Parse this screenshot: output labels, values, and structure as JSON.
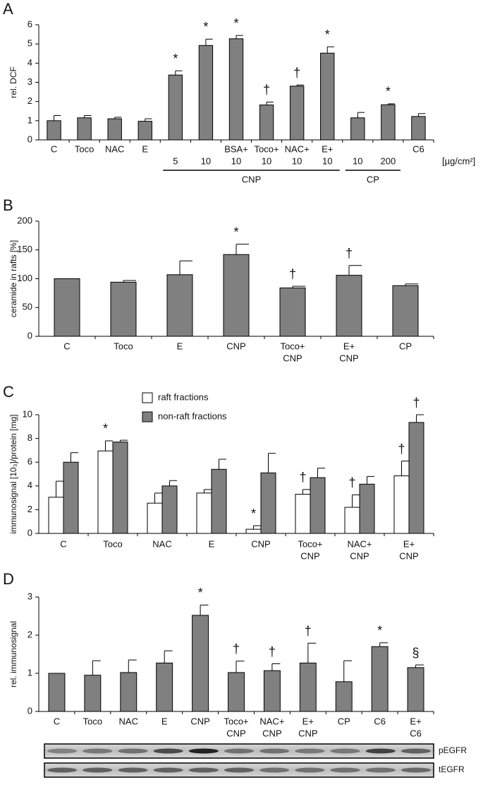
{
  "chart_data": [
    {
      "type": "bar",
      "panel": "A",
      "ylabel": "rel. DCF",
      "unit": "[µg/cm²]",
      "color": "#808080",
      "categories": [
        "C",
        "Toco",
        "NAC",
        "E",
        "5",
        "10",
        [
          "BSA+",
          "10"
        ],
        [
          "Toco+",
          "10"
        ],
        [
          "NAC+",
          "10"
        ],
        [
          "E+",
          "10"
        ],
        "10",
        "200",
        "C6"
      ],
      "values": [
        1.0,
        1.15,
        1.1,
        0.97,
        3.38,
        4.92,
        5.27,
        1.82,
        2.8,
        4.52,
        1.15,
        1.83,
        1.22
      ],
      "errors": [
        0.27,
        0.12,
        0.08,
        0.13,
        0.22,
        0.33,
        0.17,
        0.15,
        0.06,
        0.33,
        0.28,
        0.05,
        0.15
      ],
      "markers": [
        null,
        null,
        null,
        null,
        "*",
        "*",
        "*",
        "†",
        "†",
        "*",
        null,
        "*",
        null
      ],
      "groups": [
        {
          "label": "CNP",
          "first": 4,
          "last": 9
        },
        {
          "label": "CP",
          "first": 10,
          "last": 11
        }
      ],
      "ylim": [
        0,
        6
      ],
      "yticks": [
        0,
        1,
        2,
        3,
        4,
        5,
        6
      ]
    },
    {
      "type": "bar",
      "panel": "B",
      "ylabel": "ceramide in rafts [%]",
      "color": "#808080",
      "categories": [
        "C",
        "Toco",
        "E",
        "CNP",
        [
          "Toco+",
          "CNP"
        ],
        [
          "E+",
          "CNP"
        ],
        "CP"
      ],
      "values": [
        100,
        94,
        107,
        142,
        84,
        106,
        88
      ],
      "errors": [
        null,
        3,
        24,
        18,
        3,
        17,
        3
      ],
      "markers": [
        null,
        null,
        null,
        "*",
        "†",
        "†",
        null
      ],
      "ylim": [
        0,
        200
      ],
      "yticks": [
        0,
        50,
        100,
        150,
        200
      ]
    },
    {
      "type": "bar",
      "panel": "C",
      "ylabel": "immunosignal [10₃]/protein [mg]",
      "categories": [
        "C",
        "Toco",
        "NAC",
        "E",
        "CNP",
        [
          "Toco+",
          "CNP"
        ],
        [
          "NAC+",
          "CNP"
        ],
        [
          "E+",
          "CNP"
        ]
      ],
      "series": [
        {
          "name": "raft fractions",
          "color": "#ffffff",
          "values": [
            3.05,
            6.95,
            2.55,
            3.4,
            0.35,
            3.3,
            2.2,
            4.85
          ],
          "errors": [
            1.35,
            0.85,
            0.85,
            0.3,
            0.3,
            0.4,
            1.05,
            1.25
          ],
          "markers": [
            null,
            "*",
            null,
            null,
            "*",
            "†",
            "†",
            "†"
          ]
        },
        {
          "name": "non-raft fractions",
          "color": "#808080",
          "values": [
            6.0,
            7.7,
            4.0,
            5.4,
            5.1,
            4.7,
            4.15,
            9.35
          ],
          "errors": [
            0.8,
            0.15,
            0.45,
            0.85,
            1.65,
            0.8,
            0.65,
            0.65
          ],
          "markers": [
            null,
            null,
            null,
            null,
            null,
            null,
            null,
            "†"
          ]
        }
      ],
      "ylim": [
        0,
        10
      ],
      "yticks": [
        0,
        2,
        4,
        6,
        8,
        10
      ]
    },
    {
      "type": "bar",
      "panel": "D",
      "ylabel": "rel. immunosignal",
      "color": "#808080",
      "categories": [
        "C",
        "Toco",
        "NAC",
        "E",
        "CNP",
        [
          "Toco+",
          "CNP"
        ],
        [
          "NAC+",
          "CNP"
        ],
        [
          "E+",
          "CNP"
        ],
        "CP",
        "C6",
        [
          "E+",
          "C6"
        ]
      ],
      "values": [
        1.0,
        0.95,
        1.02,
        1.27,
        2.52,
        1.02,
        1.07,
        1.27,
        0.78,
        1.7,
        1.15
      ],
      "errors": [
        null,
        0.38,
        0.33,
        0.32,
        0.27,
        0.3,
        0.18,
        0.52,
        0.55,
        0.1,
        0.07
      ],
      "markers": [
        null,
        null,
        null,
        null,
        "*",
        "†",
        "†",
        "†",
        null,
        "*",
        "§"
      ],
      "blot_rows": [
        "pEGFR",
        "tEGFR"
      ],
      "ylim": [
        0,
        3
      ],
      "yticks": [
        0,
        1,
        2,
        3
      ]
    }
  ]
}
